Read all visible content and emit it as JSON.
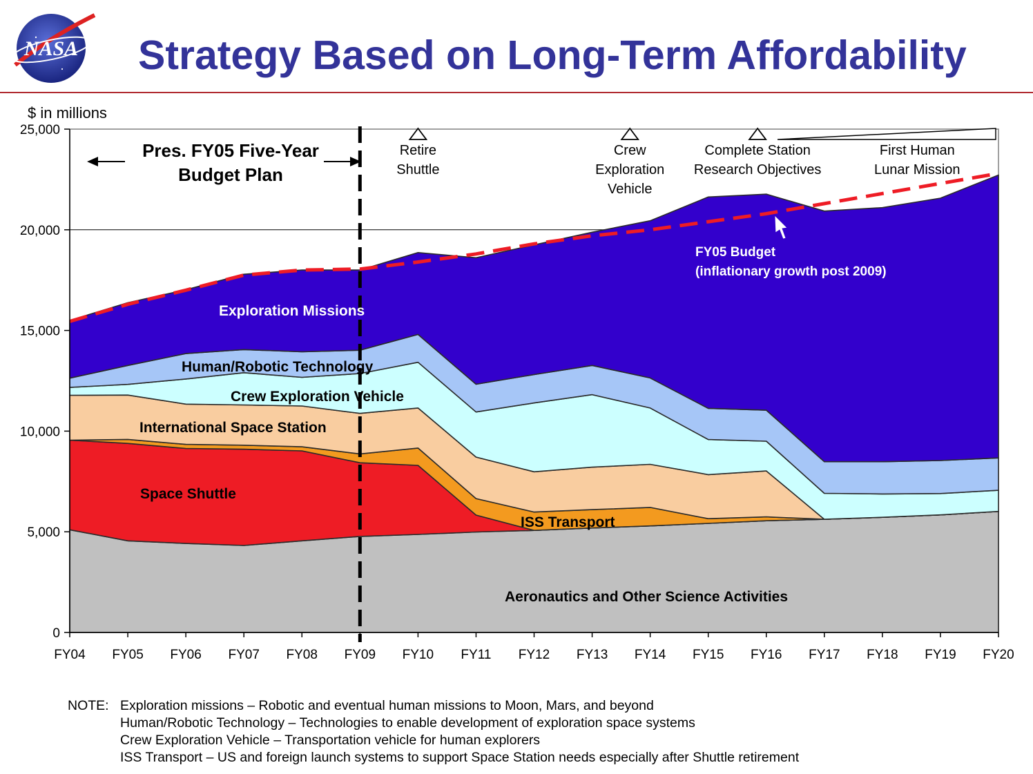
{
  "slide": {
    "title": "Strategy Based on Long-Term Affordability",
    "logo_text": "NASA",
    "accent_color": "#333399",
    "rule_color": "#b02a30"
  },
  "chart_data": {
    "type": "area",
    "stacked": true,
    "ylabel": "$ in millions",
    "ylim": [
      0,
      25000
    ],
    "yticks": [
      0,
      5000,
      10000,
      15000,
      20000,
      25000
    ],
    "ytick_labels": [
      "0",
      "5,000",
      "10,000",
      "15,000",
      "20,000",
      "25,000"
    ],
    "categories": [
      "FY04",
      "FY05",
      "FY06",
      "FY07",
      "FY08",
      "FY09",
      "FY10",
      "FY11",
      "FY12",
      "FY13",
      "FY14",
      "FY15",
      "FY16",
      "FY17",
      "FY18",
      "FY19",
      "FY20"
    ],
    "series": [
      {
        "name": "Aeronautics and Other Science Activities",
        "color": "#c0c0c0",
        "values": [
          5100,
          4550,
          4420,
          4320,
          4550,
          4770,
          4870,
          4990,
          5070,
          5190,
          5290,
          5420,
          5550,
          5620,
          5720,
          5840,
          6010
        ]
      },
      {
        "name": "Space Shuttle",
        "color": "#ee1c25",
        "values": [
          4450,
          4840,
          4720,
          4780,
          4470,
          3660,
          3430,
          840,
          0,
          0,
          0,
          0,
          0,
          0,
          0,
          0,
          0
        ]
      },
      {
        "name": "ISS Transport",
        "color": "#f39a1f",
        "values": [
          0,
          200,
          200,
          200,
          200,
          440,
          860,
          820,
          910,
          910,
          920,
          230,
          190,
          0,
          0,
          0,
          0
        ]
      },
      {
        "name": "International Space Station",
        "color": "#f9cda0",
        "values": [
          2230,
          2200,
          2000,
          2000,
          2030,
          2010,
          1990,
          2060,
          2000,
          2110,
          2140,
          2190,
          2280,
          0,
          0,
          0,
          0
        ]
      },
      {
        "name": "Crew Exploration Vehicle",
        "color": "#ccffff",
        "values": [
          390,
          530,
          1250,
          1600,
          1420,
          1980,
          2270,
          2240,
          3420,
          3600,
          2800,
          1740,
          1480,
          1290,
          1160,
          1060,
          1050
        ]
      },
      {
        "name": "Human/Robotic Technology",
        "color": "#a6c6f7",
        "values": [
          460,
          940,
          1260,
          1150,
          1270,
          1160,
          1380,
          1380,
          1410,
          1450,
          1490,
          1550,
          1540,
          1570,
          1600,
          1640,
          1610
        ]
      },
      {
        "name": "Exploration Missions",
        "color": "#3300cc",
        "values": [
          2870,
          3120,
          3170,
          3740,
          4060,
          3980,
          4070,
          6280,
          6440,
          6620,
          7810,
          10500,
          10730,
          12450,
          12620,
          13030,
          14050
        ]
      }
    ],
    "fy05_budget": {
      "label_line1": "FY05 Budget",
      "label_line2": "(inflationary growth post 2009)",
      "color": "#ee1c25",
      "values": [
        15450,
        16300,
        17000,
        17750,
        18000,
        18050,
        18400,
        18800,
        19300,
        19700,
        20000,
        20400,
        20800,
        21300,
        21800,
        22300,
        22800
      ]
    },
    "budget_plan_label_line1": "Pres. FY05 Five-Year",
    "budget_plan_label_line2": "Budget Plan",
    "budget_plan_end": "FY09",
    "milestones": [
      {
        "lines": [
          "Retire",
          "Shuttle"
        ],
        "at": "FY10"
      },
      {
        "lines": [
          "Crew",
          "Exploration",
          "Vehicle"
        ],
        "at": "FY13.65"
      },
      {
        "lines": [
          "Complete Station",
          "Research Objectives"
        ],
        "at": "FY15.85"
      },
      {
        "lines": [
          "First Human",
          "Lunar Mission"
        ],
        "at": "FY18.6"
      }
    ],
    "annotations": {
      "exploration": "Exploration Missions",
      "tech": "Human/Robotic Technology",
      "cev": "Crew Exploration Vehicle",
      "iss": "International Space Station",
      "shuttle": "Space Shuttle",
      "iss_transport": "ISS Transport",
      "aero": "Aeronautics and Other Science Activities"
    },
    "grid": "horizontal",
    "legend": "none"
  },
  "notes": {
    "prefix": "NOTE:",
    "lines": [
      "Exploration missions – Robotic and eventual human missions to Moon, Mars, and beyond",
      "Human/Robotic Technology – Technologies to enable development of exploration space systems",
      "Crew Exploration Vehicle – Transportation vehicle for human explorers",
      "ISS Transport – US and foreign launch systems to support Space Station needs especially after Shuttle retirement"
    ]
  }
}
